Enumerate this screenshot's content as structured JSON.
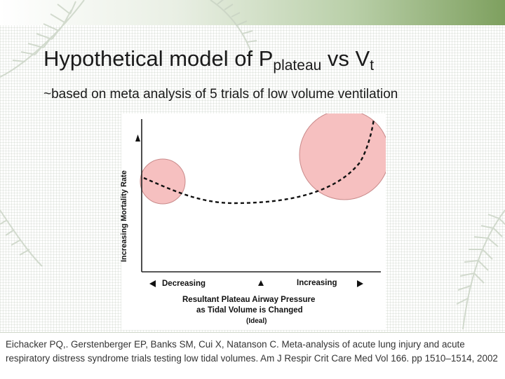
{
  "slide": {
    "title_main": "Hypothetical model of P",
    "title_sub1": "plateau",
    "title_mid": " vs V",
    "title_sub2": "t",
    "subtitle": "~based on meta analysis of 5 trials of low volume ventilation"
  },
  "figure": {
    "y_axis_label": "Increasing Mortality Rate",
    "x_left_label": "Decreasing",
    "x_right_label": "Increasing",
    "x_axis_title_line1": "Resultant Plateau Airway Pressure",
    "x_axis_title_line2": "as Tidal Volume is Changed",
    "ideal_label": "(Ideal)",
    "highlight_color": "#f5b5b5",
    "curve_style": "dashed"
  },
  "reference": {
    "text": "Eichacker PQ,. Gerstenberger EP, Banks SM, Cui X, Natanson C. Meta-analysis of acute lung injury and acute respiratory distress syndrome trials testing low tidal volumes. Am J Respir Crit Care Med Vol 166. pp 1510–1514, 2002"
  },
  "theme": {
    "accent_green": "#7ea05f",
    "icons": [
      "fern-decoration-icon",
      "arrow-up-icon",
      "arrow-left-icon",
      "arrow-right-icon",
      "ideal-marker-triangle-icon"
    ]
  }
}
